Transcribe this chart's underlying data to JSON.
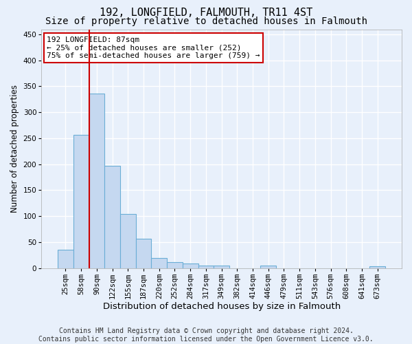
{
  "title1": "192, LONGFIELD, FALMOUTH, TR11 4ST",
  "title2": "Size of property relative to detached houses in Falmouth",
  "xlabel": "Distribution of detached houses by size in Falmouth",
  "ylabel": "Number of detached properties",
  "footnote1": "Contains HM Land Registry data © Crown copyright and database right 2024.",
  "footnote2": "Contains public sector information licensed under the Open Government Licence v3.0.",
  "categories": [
    "25sqm",
    "58sqm",
    "90sqm",
    "122sqm",
    "155sqm",
    "187sqm",
    "220sqm",
    "252sqm",
    "284sqm",
    "317sqm",
    "349sqm",
    "382sqm",
    "414sqm",
    "446sqm",
    "479sqm",
    "511sqm",
    "543sqm",
    "576sqm",
    "608sqm",
    "641sqm",
    "673sqm"
  ],
  "values": [
    35,
    256,
    336,
    197,
    104,
    57,
    19,
    11,
    8,
    5,
    5,
    0,
    0,
    4,
    0,
    0,
    0,
    0,
    0,
    0,
    3
  ],
  "bar_color": "#c5d8f0",
  "bar_edge_color": "#6aaed6",
  "vline_x_index": 2,
  "vline_color": "#cc0000",
  "annotation_text": "192 LONGFIELD: 87sqm\n← 25% of detached houses are smaller (252)\n75% of semi-detached houses are larger (759) →",
  "annotation_box_color": "white",
  "annotation_box_edge": "#cc0000",
  "ylim": [
    0,
    460
  ],
  "yticks": [
    0,
    50,
    100,
    150,
    200,
    250,
    300,
    350,
    400,
    450
  ],
  "background_color": "#e8f0fb",
  "grid_color": "white",
  "title1_fontsize": 11,
  "title2_fontsize": 10,
  "xlabel_fontsize": 9.5,
  "ylabel_fontsize": 8.5,
  "tick_fontsize": 7.5,
  "footnote_fontsize": 7
}
